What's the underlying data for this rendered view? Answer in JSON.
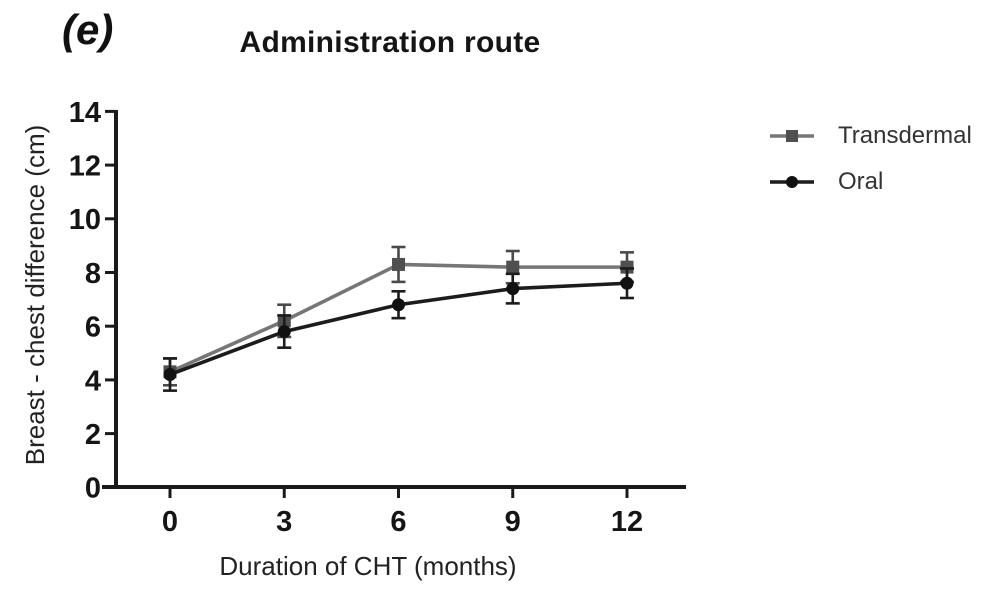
{
  "panel_label": "(e)",
  "chart_data": {
    "type": "line",
    "title": "Administration route",
    "xlabel": "Duration of CHT (months)",
    "ylabel": "Breast - chest difference (cm)",
    "x": [
      0,
      3,
      6,
      9,
      12
    ],
    "xticks": [
      "0",
      "3",
      "6",
      "9",
      "12"
    ],
    "yticks": [
      "0",
      "2",
      "4",
      "6",
      "8",
      "10",
      "12",
      "14"
    ],
    "ytick_values": [
      0,
      2,
      4,
      6,
      8,
      10,
      12,
      14
    ],
    "xlim": [
      -1.8,
      13.5
    ],
    "ylim": [
      0,
      14
    ],
    "grid": false,
    "legend_position": "right",
    "axis_color": "#1a1a1a",
    "series": [
      {
        "name": "Transdermal",
        "marker": "square",
        "color": "#767676",
        "marker_color": "#4f4f4f",
        "error_color": "#4a4a4a",
        "values": [
          4.3,
          6.2,
          8.3,
          8.2,
          8.2
        ],
        "errors": [
          0.5,
          0.6,
          0.65,
          0.6,
          0.55
        ]
      },
      {
        "name": "Oral",
        "marker": "circle",
        "color": "#1c1c1c",
        "marker_color": "#111111",
        "error_color": "#1c1c1c",
        "values": [
          4.2,
          5.8,
          6.8,
          7.4,
          7.6
        ],
        "errors": [
          0.6,
          0.6,
          0.5,
          0.55,
          0.55
        ]
      }
    ]
  }
}
